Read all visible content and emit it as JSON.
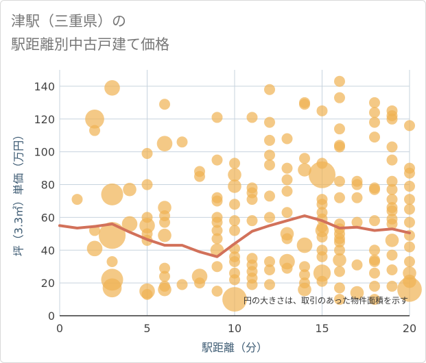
{
  "title": {
    "line1": "津駅（三重県）の",
    "line2": "駅距離別中古戸建て価格"
  },
  "colors": {
    "bubble": "#f0b252",
    "trend": "#d2715a",
    "grid": "#c7d3de",
    "axis_title": "#3d5b73"
  },
  "chart_data": {
    "type": "scatter",
    "title": "津駅（三重県）の 駅距離別中古戸建て価格",
    "xlabel": "駅距離（分）",
    "ylabel": "坪（3.3㎡）単価（万円）",
    "xlim": [
      0,
      20
    ],
    "ylim": [
      0,
      150
    ],
    "xticks": [
      0,
      5,
      10,
      15,
      20
    ],
    "yticks": [
      0,
      20,
      40,
      60,
      80,
      100,
      120,
      140
    ],
    "grid": true,
    "note": "円の大きさは、取引のあった物件面積を示す",
    "points": [
      {
        "x": 1,
        "y": 71,
        "s": 1
      },
      {
        "x": 2,
        "y": 120,
        "s": 3
      },
      {
        "x": 2,
        "y": 113,
        "s": 1
      },
      {
        "x": 2,
        "y": 41,
        "s": 2
      },
      {
        "x": 2,
        "y": 52,
        "s": 1
      },
      {
        "x": 3,
        "y": 139,
        "s": 2
      },
      {
        "x": 3,
        "y": 74,
        "s": 4
      },
      {
        "x": 3,
        "y": 49,
        "s": 6
      },
      {
        "x": 3,
        "y": 33,
        "s": 1
      },
      {
        "x": 3,
        "y": 22,
        "s": 4
      },
      {
        "x": 3,
        "y": 17,
        "s": 3
      },
      {
        "x": 4,
        "y": 77,
        "s": 1.5
      },
      {
        "x": 4,
        "y": 56,
        "s": 2
      },
      {
        "x": 5,
        "y": 99,
        "s": 1
      },
      {
        "x": 5,
        "y": 80,
        "s": 1
      },
      {
        "x": 5,
        "y": 60,
        "s": 1
      },
      {
        "x": 5,
        "y": 55,
        "s": 2
      },
      {
        "x": 5,
        "y": 50,
        "s": 1
      },
      {
        "x": 5,
        "y": 46,
        "s": 1
      },
      {
        "x": 5,
        "y": 15,
        "s": 2
      },
      {
        "x": 5,
        "y": 13,
        "s": 1
      },
      {
        "x": 6,
        "y": 129,
        "s": 1
      },
      {
        "x": 6,
        "y": 105,
        "s": 2
      },
      {
        "x": 6,
        "y": 66,
        "s": 1.5
      },
      {
        "x": 6,
        "y": 61,
        "s": 1
      },
      {
        "x": 6,
        "y": 57,
        "s": 1
      },
      {
        "x": 6,
        "y": 49,
        "s": 1.5
      },
      {
        "x": 6,
        "y": 29,
        "s": 1
      },
      {
        "x": 6,
        "y": 24,
        "s": 1
      },
      {
        "x": 6,
        "y": 18,
        "s": 1
      },
      {
        "x": 6,
        "y": 16,
        "s": 1.5
      },
      {
        "x": 7,
        "y": 106,
        "s": 1
      },
      {
        "x": 7,
        "y": 19,
        "s": 1
      },
      {
        "x": 8,
        "y": 88,
        "s": 1
      },
      {
        "x": 8,
        "y": 85,
        "s": 1
      },
      {
        "x": 8,
        "y": 24,
        "s": 2
      },
      {
        "x": 8,
        "y": 20,
        "s": 1
      },
      {
        "x": 9,
        "y": 121,
        "s": 1
      },
      {
        "x": 9,
        "y": 95,
        "s": 1
      },
      {
        "x": 9,
        "y": 72,
        "s": 1
      },
      {
        "x": 9,
        "y": 70,
        "s": 1
      },
      {
        "x": 9,
        "y": 60,
        "s": 1
      },
      {
        "x": 9,
        "y": 57,
        "s": 1
      },
      {
        "x": 9,
        "y": 52,
        "s": 1
      },
      {
        "x": 9,
        "y": 47,
        "s": 1
      },
      {
        "x": 9,
        "y": 40,
        "s": 1.5
      },
      {
        "x": 9,
        "y": 30,
        "s": 1
      },
      {
        "x": 9,
        "y": 15,
        "s": 1
      },
      {
        "x": 10,
        "y": 93,
        "s": 1
      },
      {
        "x": 10,
        "y": 86,
        "s": 1.5
      },
      {
        "x": 10,
        "y": 79,
        "s": 1.5
      },
      {
        "x": 10,
        "y": 68,
        "s": 1
      },
      {
        "x": 10,
        "y": 58,
        "s": 1
      },
      {
        "x": 10,
        "y": 52,
        "s": 1
      },
      {
        "x": 10,
        "y": 41,
        "s": 1
      },
      {
        "x": 10,
        "y": 36,
        "s": 1
      },
      {
        "x": 10,
        "y": 33,
        "s": 1
      },
      {
        "x": 10,
        "y": 26,
        "s": 1
      },
      {
        "x": 10,
        "y": 22,
        "s": 1
      },
      {
        "x": 10,
        "y": 10,
        "s": 5
      },
      {
        "x": 11,
        "y": 121,
        "s": 1
      },
      {
        "x": 11,
        "y": 78,
        "s": 1
      },
      {
        "x": 11,
        "y": 75,
        "s": 1
      },
      {
        "x": 11,
        "y": 71,
        "s": 1
      },
      {
        "x": 11,
        "y": 58,
        "s": 1
      },
      {
        "x": 11,
        "y": 35,
        "s": 1
      },
      {
        "x": 11,
        "y": 31,
        "s": 1
      },
      {
        "x": 11,
        "y": 27,
        "s": 1
      },
      {
        "x": 11,
        "y": 23,
        "s": 1
      },
      {
        "x": 11,
        "y": 19,
        "s": 1
      },
      {
        "x": 12,
        "y": 138,
        "s": 1
      },
      {
        "x": 12,
        "y": 118,
        "s": 1
      },
      {
        "x": 12,
        "y": 107,
        "s": 1
      },
      {
        "x": 12,
        "y": 98,
        "s": 1
      },
      {
        "x": 12,
        "y": 92,
        "s": 1
      },
      {
        "x": 12,
        "y": 73,
        "s": 1
      },
      {
        "x": 12,
        "y": 60,
        "s": 1
      },
      {
        "x": 12,
        "y": 33,
        "s": 1
      },
      {
        "x": 12,
        "y": 28,
        "s": 1
      },
      {
        "x": 12,
        "y": 19,
        "s": 1
      },
      {
        "x": 13,
        "y": 108,
        "s": 1
      },
      {
        "x": 13,
        "y": 90,
        "s": 1
      },
      {
        "x": 13,
        "y": 83,
        "s": 1
      },
      {
        "x": 13,
        "y": 76,
        "s": 1
      },
      {
        "x": 13,
        "y": 63,
        "s": 1
      },
      {
        "x": 13,
        "y": 50,
        "s": 1.5
      },
      {
        "x": 13,
        "y": 47,
        "s": 1
      },
      {
        "x": 13,
        "y": 33,
        "s": 2
      },
      {
        "x": 13,
        "y": 29,
        "s": 1
      },
      {
        "x": 14,
        "y": 130,
        "s": 1
      },
      {
        "x": 14,
        "y": 129,
        "s": 1
      },
      {
        "x": 14,
        "y": 96,
        "s": 1
      },
      {
        "x": 14,
        "y": 89,
        "s": 1.5
      },
      {
        "x": 14,
        "y": 43,
        "s": 2
      },
      {
        "x": 14,
        "y": 30,
        "s": 1
      },
      {
        "x": 14,
        "y": 25,
        "s": 1
      },
      {
        "x": 14,
        "y": 20,
        "s": 1
      },
      {
        "x": 14,
        "y": 16,
        "s": 1.5
      },
      {
        "x": 15,
        "y": 125,
        "s": 1
      },
      {
        "x": 15,
        "y": 93,
        "s": 1
      },
      {
        "x": 15,
        "y": 86,
        "s": 6
      },
      {
        "x": 15,
        "y": 71,
        "s": 1
      },
      {
        "x": 15,
        "y": 68,
        "s": 1
      },
      {
        "x": 15,
        "y": 63,
        "s": 1
      },
      {
        "x": 15,
        "y": 59,
        "s": 1
      },
      {
        "x": 15,
        "y": 54,
        "s": 1
      },
      {
        "x": 15,
        "y": 52,
        "s": 1.5
      },
      {
        "x": 15,
        "y": 48,
        "s": 1
      },
      {
        "x": 15,
        "y": 40,
        "s": 1
      },
      {
        "x": 15,
        "y": 36,
        "s": 1
      },
      {
        "x": 15,
        "y": 26,
        "s": 2.5
      },
      {
        "x": 15,
        "y": 21,
        "s": 1
      },
      {
        "x": 16,
        "y": 143,
        "s": 1
      },
      {
        "x": 16,
        "y": 133,
        "s": 1
      },
      {
        "x": 16,
        "y": 114,
        "s": 1
      },
      {
        "x": 16,
        "y": 104,
        "s": 1
      },
      {
        "x": 16,
        "y": 103,
        "s": 1
      },
      {
        "x": 16,
        "y": 82,
        "s": 1
      },
      {
        "x": 16,
        "y": 72,
        "s": 1
      },
      {
        "x": 16,
        "y": 56,
        "s": 1
      },
      {
        "x": 16,
        "y": 53,
        "s": 1
      },
      {
        "x": 16,
        "y": 50,
        "s": 1
      },
      {
        "x": 16,
        "y": 47,
        "s": 1
      },
      {
        "x": 16,
        "y": 45,
        "s": 1
      },
      {
        "x": 16,
        "y": 40,
        "s": 1
      },
      {
        "x": 16,
        "y": 34,
        "s": 1.5
      },
      {
        "x": 16,
        "y": 27,
        "s": 1
      },
      {
        "x": 16,
        "y": 17,
        "s": 1
      },
      {
        "x": 16,
        "y": 10,
        "s": 1
      },
      {
        "x": 17,
        "y": 82,
        "s": 1
      },
      {
        "x": 17,
        "y": 80,
        "s": 1
      },
      {
        "x": 17,
        "y": 72,
        "s": 1
      },
      {
        "x": 17,
        "y": 57,
        "s": 1
      },
      {
        "x": 17,
        "y": 31,
        "s": 1
      },
      {
        "x": 17,
        "y": 14,
        "s": 1.5
      },
      {
        "x": 18,
        "y": 130,
        "s": 1
      },
      {
        "x": 18,
        "y": 124,
        "s": 1
      },
      {
        "x": 18,
        "y": 118,
        "s": 1
      },
      {
        "x": 18,
        "y": 109,
        "s": 1
      },
      {
        "x": 18,
        "y": 78,
        "s": 1
      },
      {
        "x": 18,
        "y": 77,
        "s": 1
      },
      {
        "x": 18,
        "y": 58,
        "s": 1
      },
      {
        "x": 18,
        "y": 40,
        "s": 1
      },
      {
        "x": 18,
        "y": 34,
        "s": 1
      },
      {
        "x": 18,
        "y": 33,
        "s": 1
      },
      {
        "x": 18,
        "y": 26,
        "s": 1
      },
      {
        "x": 18,
        "y": 18,
        "s": 1
      },
      {
        "x": 18,
        "y": 10,
        "s": 1
      },
      {
        "x": 19,
        "y": 125,
        "s": 1
      },
      {
        "x": 19,
        "y": 122,
        "s": 1
      },
      {
        "x": 19,
        "y": 120,
        "s": 1
      },
      {
        "x": 19,
        "y": 103,
        "s": 1
      },
      {
        "x": 19,
        "y": 95,
        "s": 1
      },
      {
        "x": 19,
        "y": 82,
        "s": 1
      },
      {
        "x": 19,
        "y": 77,
        "s": 1
      },
      {
        "x": 19,
        "y": 71,
        "s": 1
      },
      {
        "x": 19,
        "y": 66,
        "s": 1
      },
      {
        "x": 19,
        "y": 64,
        "s": 1
      },
      {
        "x": 19,
        "y": 59,
        "s": 1
      },
      {
        "x": 19,
        "y": 56,
        "s": 1
      },
      {
        "x": 19,
        "y": 46,
        "s": 1.5
      },
      {
        "x": 19,
        "y": 37,
        "s": 1
      },
      {
        "x": 19,
        "y": 28,
        "s": 1
      },
      {
        "x": 19,
        "y": 18,
        "s": 1
      },
      {
        "x": 20,
        "y": 116,
        "s": 1
      },
      {
        "x": 20,
        "y": 90,
        "s": 1
      },
      {
        "x": 20,
        "y": 87,
        "s": 1
      },
      {
        "x": 20,
        "y": 79,
        "s": 1
      },
      {
        "x": 20,
        "y": 71,
        "s": 1
      },
      {
        "x": 20,
        "y": 65,
        "s": 1
      },
      {
        "x": 20,
        "y": 57,
        "s": 1
      },
      {
        "x": 20,
        "y": 49,
        "s": 1
      },
      {
        "x": 20,
        "y": 42,
        "s": 1
      },
      {
        "x": 20,
        "y": 33,
        "s": 1
      },
      {
        "x": 20,
        "y": 26,
        "s": 1.5
      },
      {
        "x": 20,
        "y": 21,
        "s": 1.5
      },
      {
        "x": 20,
        "y": 16,
        "s": 5
      }
    ],
    "series": [
      {
        "type": "line",
        "x": [
          0,
          1,
          2,
          3,
          4,
          5,
          6,
          7,
          8,
          9,
          10,
          11,
          12,
          13,
          14,
          15,
          16,
          17,
          18,
          19,
          20
        ],
        "y": [
          55,
          53.5,
          54.5,
          56,
          51,
          46.5,
          43,
          43,
          39,
          36,
          44,
          51.5,
          55,
          58,
          61,
          58,
          53.5,
          54,
          52,
          53,
          50.5
        ]
      }
    ]
  }
}
